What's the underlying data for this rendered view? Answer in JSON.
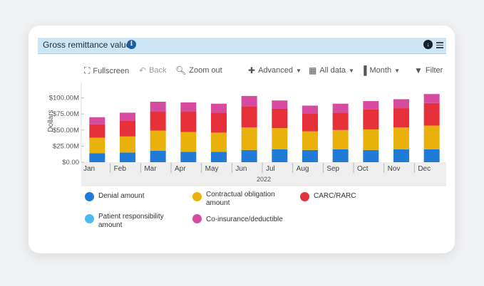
{
  "header": {
    "title": "Gross remittance value",
    "info_icon": "info-icon",
    "download_icon": "download-icon",
    "menu_icon": "menu-icon"
  },
  "toolbar": {
    "fullscreen": "Fullscreen",
    "back": "Back",
    "zoom_out": "Zoom out",
    "advanced": "Advanced",
    "all_data": "All data",
    "month": "Month",
    "filter": "Filter"
  },
  "chart_data": {
    "type": "bar",
    "stacked": true,
    "xlabel": "2022",
    "ylabel": "Dollars",
    "ylim": [
      0,
      125000
    ],
    "yticks": [
      0,
      25000,
      50000,
      75000,
      100000
    ],
    "ytick_labels": [
      "$0.00",
      "$25.00M",
      "$50.00M",
      "$75.00M",
      "$100.00M"
    ],
    "categories": [
      "Jan",
      "Feb",
      "Mar",
      "Apr",
      "May",
      "Jun",
      "Jul",
      "Aug",
      "Sep",
      "Oct",
      "Nov",
      "Dec"
    ],
    "series": [
      {
        "name": "Denial amount",
        "color": "#1f7ad8",
        "values": [
          14000,
          15000,
          18000,
          16000,
          16000,
          19000,
          20000,
          19000,
          20000,
          19000,
          20000,
          20000
        ]
      },
      {
        "name": "Contractual obligation amount",
        "color": "#e8b10c",
        "values": [
          24000,
          25000,
          31000,
          31000,
          30000,
          35000,
          33000,
          29000,
          30000,
          32000,
          34000,
          37000
        ]
      },
      {
        "name": "CARC/RARC",
        "color": "#e6313a",
        "values": [
          21000,
          25000,
          30000,
          32000,
          31000,
          33000,
          30000,
          28000,
          27000,
          31000,
          30000,
          35000
        ]
      },
      {
        "name": "Patient responsibility amount",
        "color": "#4eb8f0",
        "values": [
          0,
          0,
          0,
          0,
          0,
          0,
          0,
          0,
          0,
          0,
          0,
          0
        ]
      },
      {
        "name": "Co-insurance/deductible",
        "color": "#d64aa0",
        "values": [
          11000,
          12000,
          15000,
          14000,
          14000,
          16000,
          13000,
          12000,
          14000,
          13000,
          14000,
          14000
        ]
      }
    ]
  },
  "legend": [
    {
      "label": "Denial amount",
      "color": "#1f7ad8"
    },
    {
      "label": "Contractual obligation amount",
      "color": "#e8b10c"
    },
    {
      "label": "CARC/RARC",
      "color": "#e6313a"
    },
    {
      "label": "Patient responsibility amount",
      "color": "#4eb8f0"
    },
    {
      "label": "Co-insurance/deductible",
      "color": "#d64aa0"
    }
  ]
}
